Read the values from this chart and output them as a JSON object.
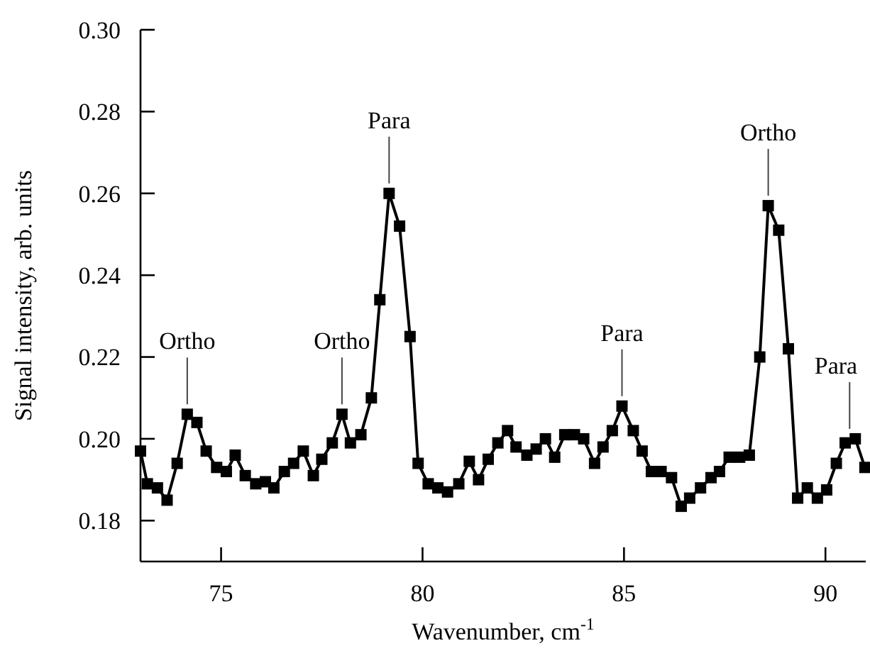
{
  "chart_data": {
    "type": "line",
    "xlabel": "Wavenumber, cm$^{-1}$",
    "ylabel": "Signal intensity, arb. units",
    "xlim": [
      73,
      91
    ],
    "xticks": [
      75,
      80,
      85,
      90
    ],
    "ylim": [
      0.17,
      0.3
    ],
    "yticks": [
      0.18,
      {
        "value": 0.2,
        "label": "0.20"
      },
      0.22,
      0.24,
      0.26,
      0.28,
      {
        "value": 0.3,
        "label": "0.30"
      }
    ],
    "marker": "square",
    "line_style": "solid",
    "series": [
      {
        "color": "#000000",
        "x": [
          73.0,
          73.17,
          73.42,
          73.66,
          73.91,
          74.16,
          74.4,
          74.63,
          74.89,
          75.13,
          75.35,
          75.6,
          75.86,
          76.1,
          76.31,
          76.57,
          76.8,
          77.04,
          77.29,
          77.5,
          77.76,
          78.0,
          78.21,
          78.47,
          78.73,
          78.94,
          79.17,
          79.43,
          79.69,
          79.89,
          80.14,
          80.38,
          80.62,
          80.9,
          81.16,
          81.39,
          81.63,
          81.87,
          82.11,
          82.32,
          82.59,
          82.82,
          83.05,
          83.28,
          83.53,
          83.77,
          84.0,
          84.27,
          84.48,
          84.71,
          84.95,
          85.23,
          85.45,
          85.68,
          85.92,
          86.18,
          86.42,
          86.63,
          86.9,
          87.16,
          87.37,
          87.61,
          87.87,
          88.11,
          88.37,
          88.58,
          88.84,
          89.08,
          89.31,
          89.55,
          89.8,
          90.03,
          90.27,
          90.49,
          90.74,
          90.98
        ],
        "values": [
          0.197,
          0.189,
          0.188,
          0.185,
          0.194,
          0.206,
          0.204,
          0.197,
          0.193,
          0.192,
          0.196,
          0.191,
          0.189,
          0.1895,
          0.188,
          0.192,
          0.194,
          0.197,
          0.191,
          0.195,
          0.199,
          0.206,
          0.199,
          0.201,
          0.21,
          0.234,
          0.26,
          0.252,
          0.225,
          0.194,
          0.189,
          0.188,
          0.187,
          0.189,
          0.1945,
          0.19,
          0.195,
          0.199,
          0.202,
          0.198,
          0.196,
          0.1975,
          0.2,
          0.1955,
          0.201,
          0.201,
          0.2,
          0.194,
          0.198,
          0.202,
          0.208,
          0.202,
          0.197,
          0.192,
          0.192,
          0.1905,
          0.1835,
          0.1855,
          0.188,
          0.1905,
          0.192,
          0.1955,
          0.1955,
          0.196,
          0.22,
          0.257,
          0.251,
          0.222,
          0.1855,
          0.188,
          0.1855,
          0.1875,
          0.194,
          0.199,
          0.2,
          0.193
        ]
      }
    ],
    "annotations": [
      {
        "text": "Ortho",
        "x": 74.16,
        "y": 0.206
      },
      {
        "text": "Ortho",
        "x": 78.0,
        "y": 0.206
      },
      {
        "text": "Para",
        "x": 79.17,
        "y": 0.26
      },
      {
        "text": "Para",
        "x": 84.95,
        "y": 0.208
      },
      {
        "text": "Ortho",
        "x": 88.58,
        "y": 0.257
      },
      {
        "text": "Para",
        "x": 90.6,
        "y": 0.2
      }
    ]
  }
}
